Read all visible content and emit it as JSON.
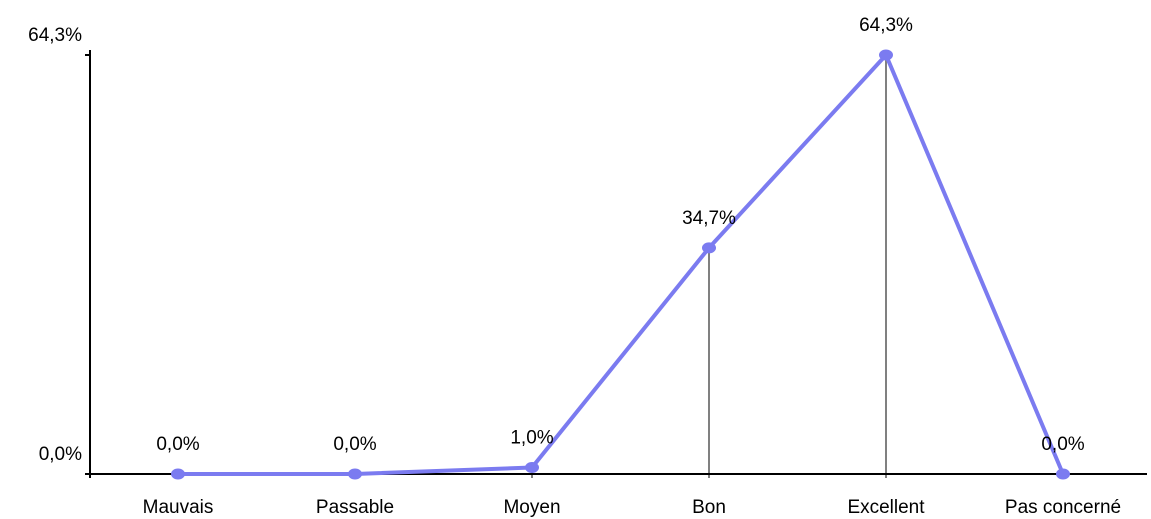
{
  "chart_data": {
    "type": "line",
    "categories": [
      "Mauvais",
      "Passable",
      "Moyen",
      "Bon",
      "Excellent",
      "Pas concerné"
    ],
    "values": [
      0.0,
      0.0,
      1.0,
      34.7,
      64.3,
      0.0
    ],
    "data_labels": [
      "0,0%",
      "0,0%",
      "1,0%",
      "34,7%",
      "64,3%",
      "0,0%"
    ],
    "y_tick_labels": [
      "0,0%",
      "64,3%"
    ],
    "y_ticks": [
      0.0,
      64.3
    ],
    "ylim": [
      0,
      64.3
    ],
    "title": "",
    "xlabel": "",
    "ylabel": "",
    "grid": false,
    "legend": "none",
    "drop_lines": true,
    "colors": {
      "series": "#7b7bf0",
      "drop_line": "#808080",
      "axis": "#000000"
    }
  }
}
